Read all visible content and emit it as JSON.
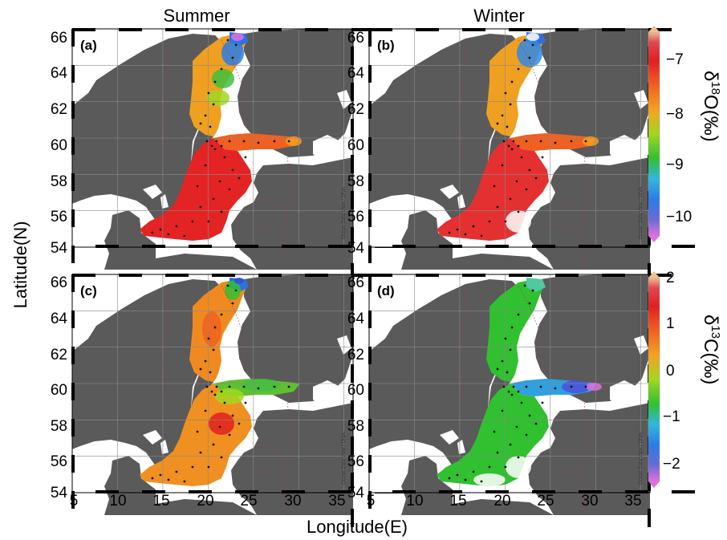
{
  "col_titles": [
    "Summer",
    "Winter"
  ],
  "axes": {
    "xlabel": "Longitude(E)",
    "ylabel": "Latitude(N)",
    "x_ticks": [
      "5",
      "10",
      "15",
      "20",
      "25",
      "30",
      "35"
    ],
    "y_ticks": [
      "54",
      "56",
      "58",
      "60",
      "62",
      "64",
      "66"
    ],
    "lon_range": [
      5,
      36
    ],
    "lat_range": [
      54,
      66
    ]
  },
  "panels": [
    {
      "label": "(a)",
      "season": "Summer",
      "variable": "d18O"
    },
    {
      "label": "(b)",
      "season": "Winter",
      "variable": "d18O"
    },
    {
      "label": "(c)",
      "season": "Summer",
      "variable": "d13C"
    },
    {
      "label": "(d)",
      "season": "Winter",
      "variable": "d13C"
    }
  ],
  "watermark": "Ocean Data View / DIVA",
  "colorbars": [
    {
      "label_main": "δ",
      "label_sup": "18",
      "label_rest": "O(‰)",
      "ticks": [
        "−7",
        "−8",
        "−9",
        "−10"
      ],
      "range": [
        -10.6,
        -6.5
      ],
      "colors": [
        "#e070e0",
        "#6a6ad8",
        "#2a7ce8",
        "#30b8e0",
        "#30c030",
        "#a0d820",
        "#f8a020",
        "#f06020",
        "#e02020",
        "#e04850",
        "#f0c090"
      ]
    },
    {
      "label_main": "δ",
      "label_sup": "13",
      "label_rest": "C(‰)",
      "ticks": [
        "2",
        "1",
        "0",
        "−1",
        "−2"
      ],
      "range": [
        -2.5,
        2.0
      ],
      "colors": [
        "#e070e0",
        "#6a6ad8",
        "#2a7ce8",
        "#30b8e0",
        "#30c030",
        "#a0d820",
        "#f8a020",
        "#f06020",
        "#e02020",
        "#e04850",
        "#f0c090"
      ]
    }
  ],
  "colors": {
    "land": "#5a5a5a",
    "sea": "#ffffff",
    "grid": "#8a8a8a",
    "border": "#a04040"
  }
}
